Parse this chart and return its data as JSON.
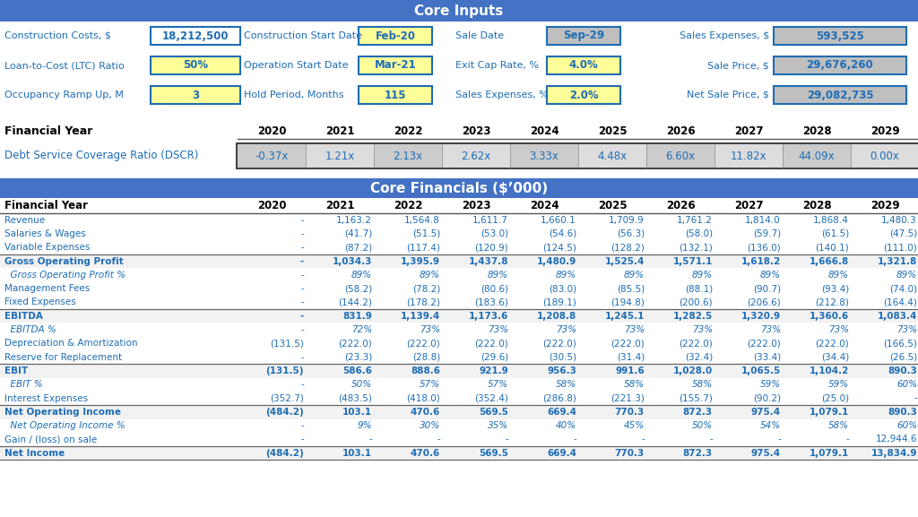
{
  "title1": "Core Inputs",
  "title2": "Core Financials ($’000)",
  "header_bg": "#4472C4",
  "header_fg": "#FFFFFF",
  "lc": "#1E6DB5",
  "bg": "#FFFFFF",
  "yellow_bg": "#FFFF99",
  "gray_bg": "#BFBFBF",
  "white_bg": "#FFFFFF",
  "row_inputs": [
    [
      {
        "label": "Construction Costs, $",
        "value": "18,212,500",
        "vbg": "#FFFFFF",
        "lbg": "none"
      },
      {
        "label": "Construction Start Date",
        "value": "Feb-20",
        "vbg": "#FFFF99",
        "lbg": "none"
      },
      {
        "label": "Sale Date",
        "value": "Sep-29",
        "vbg": "#BFBFBF",
        "lbg": "none"
      },
      {
        "label": "Sales Expenses, $",
        "value": "593,525",
        "vbg": "#BFBFBF",
        "lbg": "none"
      }
    ],
    [
      {
        "label": "Loan-to-Cost (LTC) Ratio",
        "value": "50%",
        "vbg": "#FFFF99",
        "lbg": "none"
      },
      {
        "label": "Operation Start Date",
        "value": "Mar-21",
        "vbg": "#FFFF99",
        "lbg": "none"
      },
      {
        "label": "Exit Cap Rate, %",
        "value": "4.0%",
        "vbg": "#FFFF99",
        "lbg": "none"
      },
      {
        "label": "Sale Price, $",
        "value": "29,676,260",
        "vbg": "#BFBFBF",
        "lbg": "none"
      }
    ],
    [
      {
        "label": "Occupancy Ramp Up, M",
        "value": "3",
        "vbg": "#FFFF99",
        "lbg": "none"
      },
      {
        "label": "Hold Period, Months",
        "value": "115",
        "vbg": "#FFFF99",
        "lbg": "none"
      },
      {
        "label": "Sales Expenses, %",
        "value": "2.0%",
        "vbg": "#FFFF99",
        "lbg": "none"
      },
      {
        "label": "Net Sale Price, $",
        "value": "29,082,735",
        "vbg": "#BFBFBF",
        "lbg": "none"
      }
    ]
  ],
  "years": [
    "2020",
    "2021",
    "2022",
    "2023",
    "2024",
    "2025",
    "2026",
    "2027",
    "2028",
    "2029"
  ],
  "dscr": [
    "-0.37x",
    "1.21x",
    "2.13x",
    "2.62x",
    "3.33x",
    "4.48x",
    "6.60x",
    "11.82x",
    "44.09x",
    "0.00x"
  ],
  "fin_rows": [
    {
      "label": "Revenue",
      "bold": false,
      "italic": false,
      "indent": true,
      "topline": false,
      "botline": false,
      "values": [
        "-",
        "1,163.2",
        "1,564.8",
        "1,611.7",
        "1,660.1",
        "1,709.9",
        "1,761.2",
        "1,814.0",
        "1,868.4",
        "1,480.3"
      ]
    },
    {
      "label": "Salaries & Wages",
      "bold": false,
      "italic": false,
      "indent": true,
      "topline": false,
      "botline": false,
      "values": [
        "-",
        "(41.7)",
        "(51.5)",
        "(53.0)",
        "(54.6)",
        "(56.3)",
        "(58.0)",
        "(59.7)",
        "(61.5)",
        "(47.5)"
      ]
    },
    {
      "label": "Variable Expenses",
      "bold": false,
      "italic": false,
      "indent": true,
      "topline": false,
      "botline": false,
      "values": [
        "-",
        "(87.2)",
        "(117.4)",
        "(120.9)",
        "(124.5)",
        "(128.2)",
        "(132.1)",
        "(136.0)",
        "(140.1)",
        "(111.0)"
      ]
    },
    {
      "label": "Gross Operating Profit",
      "bold": true,
      "italic": false,
      "indent": false,
      "topline": true,
      "botline": false,
      "values": [
        "-",
        "1,034.3",
        "1,395.9",
        "1,437.8",
        "1,480.9",
        "1,525.4",
        "1,571.1",
        "1,618.2",
        "1,666.8",
        "1,321.8"
      ]
    },
    {
      "label": "  Gross Operating Profit %",
      "bold": false,
      "italic": true,
      "indent": false,
      "topline": false,
      "botline": false,
      "values": [
        "-",
        "89%",
        "89%",
        "89%",
        "89%",
        "89%",
        "89%",
        "89%",
        "89%",
        "89%"
      ]
    },
    {
      "label": "Management Fees",
      "bold": false,
      "italic": false,
      "indent": true,
      "topline": false,
      "botline": false,
      "values": [
        "-",
        "(58.2)",
        "(78.2)",
        "(80.6)",
        "(83.0)",
        "(85.5)",
        "(88.1)",
        "(90.7)",
        "(93.4)",
        "(74.0)"
      ]
    },
    {
      "label": "Fixed Expenses",
      "bold": false,
      "italic": false,
      "indent": true,
      "topline": false,
      "botline": false,
      "values": [
        "-",
        "(144.2)",
        "(178.2)",
        "(183.6)",
        "(189.1)",
        "(194.8)",
        "(200.6)",
        "(206.6)",
        "(212.8)",
        "(164.4)"
      ]
    },
    {
      "label": "EBITDA",
      "bold": true,
      "italic": false,
      "indent": false,
      "topline": true,
      "botline": false,
      "values": [
        "-",
        "831.9",
        "1,139.4",
        "1,173.6",
        "1,208.8",
        "1,245.1",
        "1,282.5",
        "1,320.9",
        "1,360.6",
        "1,083.4"
      ]
    },
    {
      "label": "  EBITDA %",
      "bold": false,
      "italic": true,
      "indent": false,
      "topline": false,
      "botline": false,
      "values": [
        "-",
        "72%",
        "73%",
        "73%",
        "73%",
        "73%",
        "73%",
        "73%",
        "73%",
        "73%"
      ]
    },
    {
      "label": "Depreciation & Amortization",
      "bold": false,
      "italic": false,
      "indent": true,
      "topline": false,
      "botline": false,
      "values": [
        "(131.5)",
        "(222.0)",
        "(222.0)",
        "(222.0)",
        "(222.0)",
        "(222.0)",
        "(222.0)",
        "(222.0)",
        "(222.0)",
        "(166.5)"
      ]
    },
    {
      "label": "Reserve for Replacement",
      "bold": false,
      "italic": false,
      "indent": true,
      "topline": false,
      "botline": false,
      "values": [
        "-",
        "(23.3)",
        "(28.8)",
        "(29.6)",
        "(30.5)",
        "(31.4)",
        "(32.4)",
        "(33.4)",
        "(34.4)",
        "(26.5)"
      ]
    },
    {
      "label": "EBIT",
      "bold": true,
      "italic": false,
      "indent": false,
      "topline": true,
      "botline": false,
      "values": [
        "(131.5)",
        "586.6",
        "888.6",
        "921.9",
        "956.3",
        "991.6",
        "1,028.0",
        "1,065.5",
        "1,104.2",
        "890.3"
      ]
    },
    {
      "label": "  EBIT %",
      "bold": false,
      "italic": true,
      "indent": false,
      "topline": false,
      "botline": false,
      "values": [
        "-",
        "50%",
        "57%",
        "57%",
        "58%",
        "58%",
        "58%",
        "59%",
        "59%",
        "60%"
      ]
    },
    {
      "label": "Interest Expenses",
      "bold": false,
      "italic": false,
      "indent": true,
      "topline": false,
      "botline": false,
      "values": [
        "(352.7)",
        "(483.5)",
        "(418.0)",
        "(352.4)",
        "(286.8)",
        "(221.3)",
        "(155.7)",
        "(90.2)",
        "(25.0)",
        "-"
      ]
    },
    {
      "label": "Net Operating Income",
      "bold": true,
      "italic": false,
      "indent": false,
      "topline": true,
      "botline": false,
      "values": [
        "(484.2)",
        "103.1",
        "470.6",
        "569.5",
        "669.4",
        "770.3",
        "872.3",
        "975.4",
        "1,079.1",
        "890.3"
      ]
    },
    {
      "label": "  Net Operating Income %",
      "bold": false,
      "italic": true,
      "indent": false,
      "topline": false,
      "botline": false,
      "values": [
        "-",
        "9%",
        "30%",
        "35%",
        "40%",
        "45%",
        "50%",
        "54%",
        "58%",
        "60%"
      ]
    },
    {
      "label": "Gain / (loss) on sale",
      "bold": false,
      "italic": false,
      "indent": true,
      "topline": false,
      "botline": false,
      "values": [
        "-",
        "-",
        "-",
        "-",
        "-",
        "-",
        "-",
        "-",
        "-",
        "12,944.6"
      ]
    },
    {
      "label": "Net Income",
      "bold": true,
      "italic": false,
      "indent": false,
      "topline": true,
      "botline": true,
      "values": [
        "(484.2)",
        "103.1",
        "470.6",
        "569.5",
        "669.4",
        "770.3",
        "872.3",
        "975.4",
        "1,079.1",
        "13,834.9"
      ]
    }
  ]
}
